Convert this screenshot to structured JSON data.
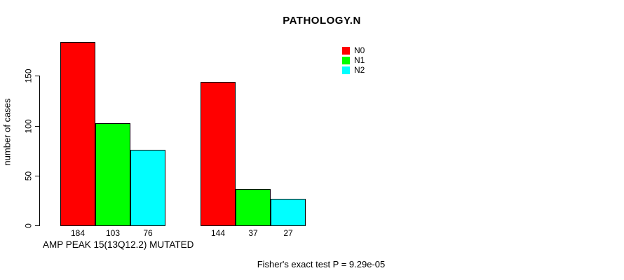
{
  "chart_data": {
    "type": "bar",
    "title": "PATHOLOGY.N",
    "ylabel": "number of cases",
    "xlabel": "AMP PEAK 15(13Q12.2) MUTATED",
    "annotation": "Fisher's exact test P = 9.29e-05",
    "series": [
      {
        "name": "N0",
        "color": "#ff0000",
        "values": [
          184,
          144
        ]
      },
      {
        "name": "N1",
        "color": "#00ff00",
        "values": [
          103,
          37
        ]
      },
      {
        "name": "N2",
        "color": "#00ffff",
        "values": [
          76,
          27
        ]
      }
    ],
    "group_count": 2,
    "bar_value_labels": [
      [
        184,
        103,
        76
      ],
      [
        144,
        37,
        27
      ]
    ],
    "yticks": [
      0,
      50,
      100,
      150
    ],
    "ylim": [
      0,
      190
    ],
    "grid": false,
    "bar_outline_color": "#000000",
    "legend": {
      "position": "top-center-right",
      "entries": [
        {
          "label": "N0",
          "color": "#ff0000"
        },
        {
          "label": "N1",
          "color": "#00ff00"
        },
        {
          "label": "N2",
          "color": "#00ffff"
        }
      ]
    }
  }
}
